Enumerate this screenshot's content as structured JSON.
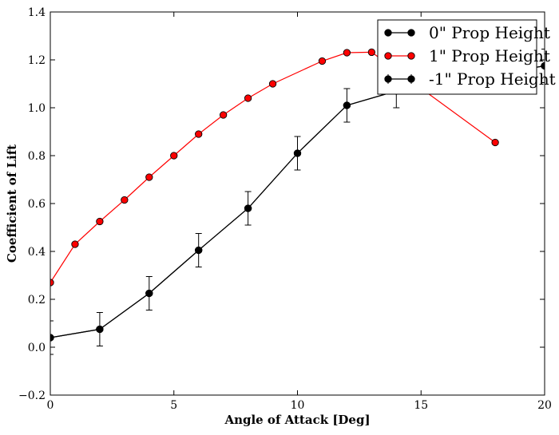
{
  "chart_data": {
    "type": "line",
    "title": "",
    "xlabel": "Angle of Attack [Deg]",
    "ylabel": "Coefficient of Lift",
    "xlim": [
      0,
      20
    ],
    "ylim": [
      -0.2,
      1.4
    ],
    "xticks": [
      0,
      5,
      10,
      15,
      20
    ],
    "yticks": [
      -0.2,
      0.0,
      0.2,
      0.4,
      0.6,
      0.8,
      1.0,
      1.2,
      1.4
    ],
    "xtick_labels": [
      "0",
      "5",
      "10",
      "15",
      "20"
    ],
    "ytick_labels": [
      "−0.2",
      "0.0",
      "0.2",
      "0.4",
      "0.6",
      "0.8",
      "1.0",
      "1.2",
      "1.4"
    ],
    "grid": false,
    "legend_position": "top-right",
    "series": [
      {
        "name": "0\" Prop Height",
        "color": "#000000",
        "marker_color": "#000000",
        "x": [
          0,
          2,
          4,
          6,
          8,
          10,
          12,
          14,
          20
        ],
        "y": [
          0.04,
          0.075,
          0.225,
          0.405,
          0.58,
          0.81,
          1.01,
          1.07,
          1.175
        ],
        "yerr": [
          0.07,
          0.07,
          0.07,
          0.07,
          0.07,
          0.07,
          0.07,
          0.0,
          0.0
        ],
        "errorbars": false,
        "in_legend": true
      },
      {
        "name": "1\" Prop Height",
        "color": "#ff0000",
        "marker_color": "#ff0000",
        "x": [
          0,
          1,
          2,
          3,
          4,
          5,
          6,
          7,
          8,
          9,
          11,
          12,
          13,
          18
        ],
        "y": [
          0.27,
          0.43,
          0.525,
          0.615,
          0.71,
          0.8,
          0.89,
          0.97,
          1.04,
          1.1,
          1.195,
          1.23,
          1.232,
          0.855
        ],
        "errorbars": false,
        "in_legend": true
      },
      {
        "name": "-1\" Prop Height",
        "color": "#000000",
        "marker_color": "#000000",
        "x": [
          0,
          2,
          4,
          6,
          8,
          10,
          12,
          14,
          20
        ],
        "y": [
          0.04,
          0.075,
          0.225,
          0.405,
          0.58,
          0.81,
          1.01,
          1.07,
          1.175
        ],
        "yerr": [
          0.07,
          0.07,
          0.07,
          0.07,
          0.07,
          0.07,
          0.07,
          0.07,
          0.07
        ],
        "errorbars": true,
        "in_legend": true
      }
    ]
  }
}
